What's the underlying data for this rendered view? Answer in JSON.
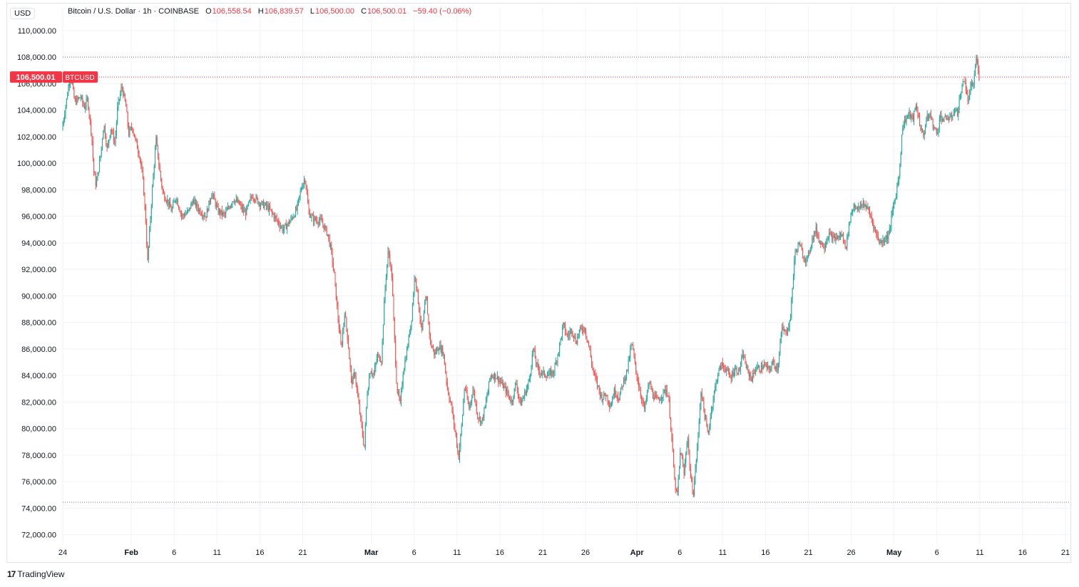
{
  "header": {
    "currency": "USD",
    "symbol_title": "Bitcoin / U.S. Dollar · 1h · COINBASE",
    "open_label": "O",
    "open": "106,558.54",
    "high_label": "H",
    "high": "106,839.57",
    "low_label": "L",
    "low": "106,500.00",
    "close_label": "C",
    "close": "106,500.01",
    "change": "−59.40 (−0.06%)"
  },
  "price_tag": {
    "value": "106,500.01",
    "symbol": "BTCUSD"
  },
  "branding": {
    "logo_mark": "17",
    "name": "TradingView"
  },
  "colors": {
    "up": "#26a69a",
    "down": "#ef5350",
    "grid": "#f0f3fa",
    "tag": "#f23645"
  },
  "chart_data": {
    "type": "candlestick",
    "interval": "1h",
    "y_axis_position": "left",
    "ylim": [
      71500,
      110800
    ],
    "yticks": [
      "72,000.00",
      "74,000.00",
      "76,000.00",
      "78,000.00",
      "80,000.00",
      "82,000.00",
      "84,000.00",
      "86,000.00",
      "88,000.00",
      "90,000.00",
      "92,000.00",
      "94,000.00",
      "96,000.00",
      "98,000.00",
      "100,000.00",
      "102,000.00",
      "104,000.00",
      "106,000.00",
      "108,000.00",
      "110,000.00"
    ],
    "ytick_values": [
      72000,
      74000,
      76000,
      78000,
      80000,
      82000,
      84000,
      86000,
      88000,
      90000,
      92000,
      94000,
      96000,
      98000,
      100000,
      102000,
      104000,
      106000,
      108000,
      110000
    ],
    "x_axis_start_day": 0,
    "x_axis_end_day": 117.5,
    "xticks": [
      {
        "label": "24",
        "day": 0
      },
      {
        "label": "Feb",
        "day": 8
      },
      {
        "label": "6",
        "day": 13
      },
      {
        "label": "11",
        "day": 18
      },
      {
        "label": "16",
        "day": 23
      },
      {
        "label": "21",
        "day": 28
      },
      {
        "label": "Mar",
        "day": 36
      },
      {
        "label": "6",
        "day": 41
      },
      {
        "label": "11",
        "day": 46
      },
      {
        "label": "16",
        "day": 51
      },
      {
        "label": "21",
        "day": 56
      },
      {
        "label": "26",
        "day": 61
      },
      {
        "label": "Apr",
        "day": 67
      },
      {
        "label": "6",
        "day": 72
      },
      {
        "label": "11",
        "day": 77
      },
      {
        "label": "16",
        "day": 82
      },
      {
        "label": "21",
        "day": 87
      },
      {
        "label": "26",
        "day": 92
      },
      {
        "label": "May",
        "day": 97
      },
      {
        "label": "6",
        "day": 102
      },
      {
        "label": "11",
        "day": 107
      },
      {
        "label": "16",
        "day": 112
      },
      {
        "label": "21",
        "day": 117
      }
    ],
    "reference_lines": [
      {
        "value": 108000,
        "style": "dotted",
        "color": "#787b86"
      },
      {
        "value": 106500.01,
        "style": "dotted",
        "color": "#f23645"
      },
      {
        "value": 74450,
        "style": "dotted",
        "color": "#787b86"
      }
    ],
    "price_path": [
      [
        0,
        102500
      ],
      [
        0.6,
        105000
      ],
      [
        1,
        106800
      ],
      [
        1.5,
        104600
      ],
      [
        2.2,
        105000
      ],
      [
        2.6,
        104200
      ],
      [
        3,
        104800
      ],
      [
        3.5,
        102000
      ],
      [
        3.7,
        99500
      ],
      [
        4,
        98300
      ],
      [
        4.5,
        100500
      ],
      [
        4.9,
        103000
      ],
      [
        5.3,
        101000
      ],
      [
        5.7,
        102700
      ],
      [
        6.2,
        101500
      ],
      [
        6.5,
        104200
      ],
      [
        7,
        105800
      ],
      [
        7.5,
        104200
      ],
      [
        7.8,
        102200
      ],
      [
        8.2,
        102800
      ],
      [
        8.6,
        101700
      ],
      [
        9.1,
        100500
      ],
      [
        9.5,
        98500
      ],
      [
        9.8,
        95500
      ],
      [
        10,
        92500
      ],
      [
        10.3,
        95500
      ],
      [
        10.6,
        98500
      ],
      [
        11,
        101800
      ],
      [
        11.4,
        99500
      ],
      [
        11.8,
        97700
      ],
      [
        12.3,
        97200
      ],
      [
        12.8,
        96400
      ],
      [
        13.3,
        97500
      ],
      [
        14,
        96000
      ],
      [
        14.7,
        96300
      ],
      [
        15.3,
        97200
      ],
      [
        16,
        96500
      ],
      [
        16.8,
        96000
      ],
      [
        17.5,
        97800
      ],
      [
        18.2,
        96400
      ],
      [
        19,
        96100
      ],
      [
        20,
        97300
      ],
      [
        20.6,
        97000
      ],
      [
        21.4,
        96200
      ],
      [
        22.2,
        97600
      ],
      [
        23.1,
        97000
      ],
      [
        24,
        96700
      ],
      [
        25,
        95800
      ],
      [
        25.8,
        95000
      ],
      [
        26.6,
        95600
      ],
      [
        27.4,
        96500
      ],
      [
        28,
        98300
      ],
      [
        28.4,
        98900
      ],
      [
        28.8,
        96300
      ],
      [
        29.3,
        95800
      ],
      [
        30.3,
        95600
      ],
      [
        31,
        94700
      ],
      [
        31.4,
        93500
      ],
      [
        31.8,
        91500
      ],
      [
        32.2,
        88500
      ],
      [
        32.6,
        86000
      ],
      [
        33,
        88800
      ],
      [
        33.4,
        86500
      ],
      [
        33.8,
        83400
      ],
      [
        34.2,
        84200
      ],
      [
        34.5,
        82500
      ],
      [
        35,
        80000
      ],
      [
        35.3,
        78500
      ],
      [
        35.6,
        82500
      ],
      [
        36,
        84500
      ],
      [
        36.4,
        84000
      ],
      [
        36.8,
        85500
      ],
      [
        37.3,
        85200
      ],
      [
        37.7,
        90500
      ],
      [
        38.1,
        93500
      ],
      [
        38.5,
        91500
      ],
      [
        38.8,
        87000
      ],
      [
        39.1,
        83000
      ],
      [
        39.5,
        81800
      ],
      [
        39.8,
        84200
      ],
      [
        40.3,
        86000
      ],
      [
        40.8,
        88300
      ],
      [
        41.2,
        91800
      ],
      [
        41.6,
        89500
      ],
      [
        42,
        87200
      ],
      [
        42.5,
        90000
      ],
      [
        43,
        86500
      ],
      [
        43.5,
        85600
      ],
      [
        44,
        86200
      ],
      [
        44.5,
        85800
      ],
      [
        45,
        83000
      ],
      [
        45.5,
        81500
      ],
      [
        46,
        79300
      ],
      [
        46.3,
        77800
      ],
      [
        46.7,
        80600
      ],
      [
        47,
        83300
      ],
      [
        47.5,
        81500
      ],
      [
        48,
        83000
      ],
      [
        48.5,
        81000
      ],
      [
        49,
        80500
      ],
      [
        49.5,
        82000
      ],
      [
        50,
        84000
      ],
      [
        50.6,
        84000
      ],
      [
        51.2,
        83500
      ],
      [
        51.8,
        82900
      ],
      [
        52.5,
        82000
      ],
      [
        53,
        83500
      ],
      [
        53.5,
        81800
      ],
      [
        54,
        82600
      ],
      [
        54.5,
        83500
      ],
      [
        55,
        86000
      ],
      [
        55.5,
        84500
      ],
      [
        56,
        84200
      ],
      [
        56.7,
        84000
      ],
      [
        57.4,
        84300
      ],
      [
        58,
        86000
      ],
      [
        58.5,
        87800
      ],
      [
        59,
        86900
      ],
      [
        59.5,
        87500
      ],
      [
        60,
        86500
      ],
      [
        60.4,
        87400
      ],
      [
        61,
        87600
      ],
      [
        61.5,
        86200
      ],
      [
        62,
        84300
      ],
      [
        62.5,
        83300
      ],
      [
        63,
        82300
      ],
      [
        63.5,
        82600
      ],
      [
        64,
        81700
      ],
      [
        64.5,
        82900
      ],
      [
        65,
        82300
      ],
      [
        65.5,
        83500
      ],
      [
        66,
        84500
      ],
      [
        66.5,
        86500
      ],
      [
        67,
        84300
      ],
      [
        67.5,
        82700
      ],
      [
        68,
        81400
      ],
      [
        68.5,
        83500
      ],
      [
        69,
        82500
      ],
      [
        69.5,
        82100
      ],
      [
        70,
        82500
      ],
      [
        70.5,
        83000
      ],
      [
        70.8,
        82300
      ],
      [
        71.2,
        79000
      ],
      [
        71.5,
        76000
      ],
      [
        71.8,
        74800
      ],
      [
        72.2,
        78500
      ],
      [
        72.6,
        76500
      ],
      [
        73,
        79600
      ],
      [
        73.4,
        76000
      ],
      [
        73.7,
        75200
      ],
      [
        74.2,
        79000
      ],
      [
        74.6,
        83000
      ],
      [
        75,
        81000
      ],
      [
        75.4,
        79500
      ],
      [
        75.8,
        81500
      ],
      [
        76.2,
        83000
      ],
      [
        76.6,
        84300
      ],
      [
        77,
        84800
      ],
      [
        77.5,
        84500
      ],
      [
        78,
        83800
      ],
      [
        78.5,
        84500
      ],
      [
        79,
        84300
      ],
      [
        79.5,
        85600
      ],
      [
        80,
        84300
      ],
      [
        80.5,
        83800
      ],
      [
        81,
        84600
      ],
      [
        81.5,
        84500
      ],
      [
        82,
        84800
      ],
      [
        82.5,
        84400
      ],
      [
        83,
        85000
      ],
      [
        83.5,
        84500
      ],
      [
        84,
        87500
      ],
      [
        84.5,
        87200
      ],
      [
        85,
        88200
      ],
      [
        85.5,
        93000
      ],
      [
        86,
        94000
      ],
      [
        86.5,
        93000
      ],
      [
        87,
        92700
      ],
      [
        87.5,
        94200
      ],
      [
        88,
        95000
      ],
      [
        88.5,
        94000
      ],
      [
        89,
        93800
      ],
      [
        89.5,
        94700
      ],
      [
        90,
        94300
      ],
      [
        90.5,
        94400
      ],
      [
        91,
        94600
      ],
      [
        91.5,
        93700
      ],
      [
        92,
        96000
      ],
      [
        92.5,
        96900
      ],
      [
        93,
        96500
      ],
      [
        93.5,
        97000
      ],
      [
        94,
        96600
      ],
      [
        94.5,
        95800
      ],
      [
        95,
        94700
      ],
      [
        95.5,
        94000
      ],
      [
        96,
        94300
      ],
      [
        96.5,
        94600
      ],
      [
        97,
        96700
      ],
      [
        97.3,
        97500
      ],
      [
        97.7,
        99200
      ],
      [
        98.1,
        102800
      ],
      [
        98.5,
        103400
      ],
      [
        98.9,
        103700
      ],
      [
        99.3,
        103300
      ],
      [
        99.7,
        104400
      ],
      [
        100.1,
        103000
      ],
      [
        100.5,
        102000
      ],
      [
        100.9,
        103300
      ],
      [
        101.3,
        103700
      ],
      [
        101.7,
        102800
      ],
      [
        102.1,
        102200
      ],
      [
        102.5,
        103600
      ],
      [
        102.9,
        103200
      ],
      [
        103.3,
        103500
      ],
      [
        103.7,
        103300
      ],
      [
        104.1,
        104000
      ],
      [
        104.5,
        103800
      ],
      [
        104.9,
        105300
      ],
      [
        105.3,
        106500
      ],
      [
        105.7,
        104600
      ],
      [
        106.1,
        105800
      ],
      [
        106.4,
        106000
      ],
      [
        106.7,
        108000
      ],
      [
        107,
        106500
      ]
    ]
  }
}
